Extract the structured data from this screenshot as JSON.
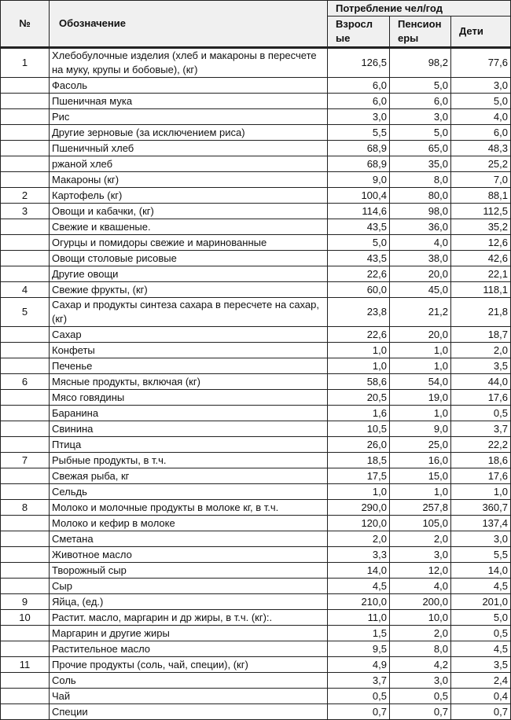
{
  "header": {
    "number": "№",
    "designation": "Обозначение",
    "consumption": "Потребление чел/год",
    "adults": "Взросл ые",
    "pensioners": "Пенсион еры",
    "children": "Дети"
  },
  "rows": [
    {
      "no": "1",
      "name": "Хлебобулочные изделия (хлеб и макароны в пересчете на муку, крупы и бобовые), (кг)",
      "adults": "126,5",
      "pensioners": "98,2",
      "children": "77,6"
    },
    {
      "no": "",
      "name": "Фасоль",
      "adults": "6,0",
      "pensioners": "5,0",
      "children": "3,0"
    },
    {
      "no": "",
      "name": "Пшеничная мука",
      "adults": "6,0",
      "pensioners": "6,0",
      "children": "5,0"
    },
    {
      "no": "",
      "name": "Рис",
      "adults": "3,0",
      "pensioners": "3,0",
      "children": "4,0"
    },
    {
      "no": "",
      "name": "Другие зерновые (за исключением риса)",
      "adults": "5,5",
      "pensioners": "5,0",
      "children": "6,0"
    },
    {
      "no": "",
      "name": "Пшеничный хлеб",
      "adults": "68,9",
      "pensioners": "65,0",
      "children": "48,3"
    },
    {
      "no": "",
      "name": "ржаной хлеб",
      "adults": "68,9",
      "pensioners": "35,0",
      "children": "25,2"
    },
    {
      "no": "",
      "name": "Макароны (кг)",
      "adults": "9,0",
      "pensioners": "8,0",
      "children": "7,0"
    },
    {
      "no": "2",
      "name": "Картофель (кг)",
      "adults": "100,4",
      "pensioners": "80,0",
      "children": "88,1"
    },
    {
      "no": "3",
      "name": "Овощи и кабачки, (кг)",
      "adults": "114,6",
      "pensioners": "98,0",
      "children": "112,5"
    },
    {
      "no": "",
      "name": "Свежие и квашеные.",
      "adults": "43,5",
      "pensioners": "36,0",
      "children": "35,2"
    },
    {
      "no": "",
      "name": "Огурцы и помидоры свежие и маринованные",
      "adults": "5,0",
      "pensioners": "4,0",
      "children": "12,6"
    },
    {
      "no": "",
      "name": "Овощи столовые рисовые",
      "adults": "43,5",
      "pensioners": "38,0",
      "children": "42,6"
    },
    {
      "no": "",
      "name": "Другие овощи",
      "adults": "22,6",
      "pensioners": "20,0",
      "children": "22,1"
    },
    {
      "no": "4",
      "name": "Свежие фрукты, (кг)",
      "adults": "60,0",
      "pensioners": "45,0",
      "children": "118,1"
    },
    {
      "no": "5",
      "name": "Сахар и продукты синтеза сахара в пересчете на сахар, (кг)",
      "adults": "23,8",
      "pensioners": "21,2",
      "children": "21,8"
    },
    {
      "no": "",
      "name": "Сахар",
      "adults": "22,6",
      "pensioners": "20,0",
      "children": "18,7"
    },
    {
      "no": "",
      "name": "Конфеты",
      "adults": "1,0",
      "pensioners": "1,0",
      "children": "2,0"
    },
    {
      "no": "",
      "name": "Печенье",
      "adults": "1,0",
      "pensioners": "1,0",
      "children": "3,5"
    },
    {
      "no": "6",
      "name": "Мясные продукты, включая (кг)",
      "adults": "58,6",
      "pensioners": "54,0",
      "children": "44,0"
    },
    {
      "no": "",
      "name": "Мясо говядины",
      "adults": "20,5",
      "pensioners": "19,0",
      "children": "17,6"
    },
    {
      "no": "",
      "name": "Баранина",
      "adults": "1,6",
      "pensioners": "1,0",
      "children": "0,5"
    },
    {
      "no": "",
      "name": "Свинина",
      "adults": "10,5",
      "pensioners": "9,0",
      "children": "3,7"
    },
    {
      "no": "",
      "name": "Птица",
      "adults": "26,0",
      "pensioners": "25,0",
      "children": "22,2"
    },
    {
      "no": "7",
      "name": "Рыбные продукты, в т.ч.",
      "adults": "18,5",
      "pensioners": "16,0",
      "children": "18,6"
    },
    {
      "no": "",
      "name": "Свежая рыба, кг",
      "adults": "17,5",
      "pensioners": "15,0",
      "children": "17,6"
    },
    {
      "no": "",
      "name": "Сельдь",
      "adults": "1,0",
      "pensioners": "1,0",
      "children": "1,0"
    },
    {
      "no": "8",
      "name": "Молоко и молочные продукты в молоке кг, в т.ч.",
      "adults": "290,0",
      "pensioners": "257,8",
      "children": "360,7"
    },
    {
      "no": "",
      "name": "Молоко и кефир в молоке",
      "adults": "120,0",
      "pensioners": "105,0",
      "children": "137,4"
    },
    {
      "no": "",
      "name": "Сметана",
      "adults": "2,0",
      "pensioners": "2,0",
      "children": "3,0"
    },
    {
      "no": "",
      "name": "Животное масло",
      "adults": "3,3",
      "pensioners": "3,0",
      "children": "5,5"
    },
    {
      "no": "",
      "name": "Творожный сыр",
      "adults": "14,0",
      "pensioners": "12,0",
      "children": "14,0"
    },
    {
      "no": "",
      "name": "Сыр",
      "adults": "4,5",
      "pensioners": "4,0",
      "children": "4,5"
    },
    {
      "no": "9",
      "name": "Яйца, (ед.)",
      "adults": "210,0",
      "pensioners": "200,0",
      "children": "201,0"
    },
    {
      "no": "10",
      "name": "Растит. масло, маргарин и др жиры, в т.ч. (кг):.",
      "adults": "11,0",
      "pensioners": "10,0",
      "children": "5,0"
    },
    {
      "no": "",
      "name": "Маргарин и другие жиры",
      "adults": "1,5",
      "pensioners": "2,0",
      "children": "0,5"
    },
    {
      "no": "",
      "name": "Растительное масло",
      "adults": "9,5",
      "pensioners": "8,0",
      "children": "4,5"
    },
    {
      "no": "11",
      "name": "Прочие продукты (соль, чай, специи), (кг)",
      "adults": "4,9",
      "pensioners": "4,2",
      "children": "3,5"
    },
    {
      "no": "",
      "name": "Соль",
      "adults": "3,7",
      "pensioners": "3,0",
      "children": "2,4"
    },
    {
      "no": "",
      "name": "Чай",
      "adults": "0,5",
      "pensioners": "0,5",
      "children": "0,4"
    },
    {
      "no": "",
      "name": "Специи",
      "adults": "0,7",
      "pensioners": "0,7",
      "children": "0,7"
    }
  ]
}
